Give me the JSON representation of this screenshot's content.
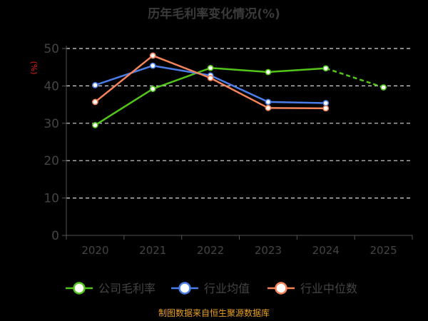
{
  "chart_data": {
    "type": "line",
    "title": "历年毛利率变化情况(%)",
    "ylabel": "(%)",
    "xlabel": "",
    "ylim": [
      0,
      50
    ],
    "yticks": [
      0,
      10,
      20,
      30,
      40,
      50
    ],
    "categories": [
      "2020",
      "2021",
      "2022",
      "2023",
      "2024",
      "2025"
    ],
    "grid": true,
    "legend_position": "bottom",
    "series": [
      {
        "name": "公司毛利率",
        "color": "#52c41a",
        "dashed_from_index": 4,
        "values": [
          29.5,
          39.2,
          44.8,
          43.7,
          44.7,
          39.6
        ]
      },
      {
        "name": "行业均值",
        "color": "#4a7de8",
        "values": [
          40.2,
          45.4,
          42.8,
          35.7,
          35.4,
          null
        ]
      },
      {
        "name": "行业中位数",
        "color": "#f5845a",
        "values": [
          35.7,
          48.1,
          42.1,
          34.1,
          34.0,
          null
        ]
      }
    ],
    "source": "制图数据来自恒生聚源数据库"
  }
}
